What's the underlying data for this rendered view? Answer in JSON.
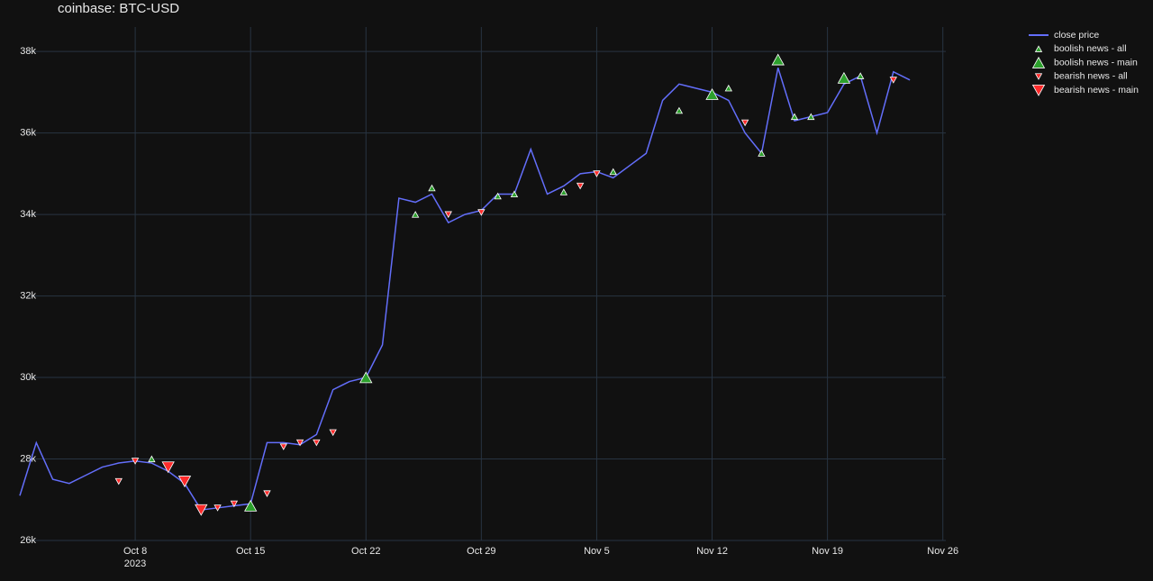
{
  "chart_data": {
    "type": "line",
    "title": "coinbase: BTC-USD",
    "x_year_label": "2023",
    "xlim": [
      "2023-10-01",
      "2023-11-27"
    ],
    "ylim": [
      26000,
      38600
    ],
    "xticks": [
      {
        "value": "2023-10-08",
        "label": "Oct 8"
      },
      {
        "value": "2023-10-15",
        "label": "Oct 15"
      },
      {
        "value": "2023-10-22",
        "label": "Oct 22"
      },
      {
        "value": "2023-10-29",
        "label": "Oct 29"
      },
      {
        "value": "2023-11-05",
        "label": "Nov 5"
      },
      {
        "value": "2023-11-12",
        "label": "Nov 12"
      },
      {
        "value": "2023-11-19",
        "label": "Nov 19"
      },
      {
        "value": "2023-11-26",
        "label": "Nov 26"
      }
    ],
    "yticks": [
      {
        "value": 26000,
        "label": "26k"
      },
      {
        "value": 28000,
        "label": "28k"
      },
      {
        "value": 30000,
        "label": "30k"
      },
      {
        "value": 32000,
        "label": "32k"
      },
      {
        "value": 34000,
        "label": "34k"
      },
      {
        "value": 36000,
        "label": "36k"
      },
      {
        "value": 38000,
        "label": "38k"
      }
    ],
    "grid": true,
    "legend": "top-right",
    "series": [
      {
        "name": "close price",
        "color": "#636efa",
        "marker": "line",
        "x": [
          "2023-10-01",
          "2023-10-02",
          "2023-10-03",
          "2023-10-04",
          "2023-10-05",
          "2023-10-06",
          "2023-10-07",
          "2023-10-08",
          "2023-10-09",
          "2023-10-10",
          "2023-10-11",
          "2023-10-12",
          "2023-10-13",
          "2023-10-14",
          "2023-10-15",
          "2023-10-16",
          "2023-10-17",
          "2023-10-18",
          "2023-10-19",
          "2023-10-20",
          "2023-10-21",
          "2023-10-22",
          "2023-10-23",
          "2023-10-24",
          "2023-10-25",
          "2023-10-26",
          "2023-10-27",
          "2023-10-28",
          "2023-10-29",
          "2023-10-30",
          "2023-10-31",
          "2023-11-01",
          "2023-11-02",
          "2023-11-03",
          "2023-11-04",
          "2023-11-05",
          "2023-11-06",
          "2023-11-07",
          "2023-11-08",
          "2023-11-09",
          "2023-11-10",
          "2023-11-11",
          "2023-11-12",
          "2023-11-13",
          "2023-11-14",
          "2023-11-15",
          "2023-11-16",
          "2023-11-17",
          "2023-11-18",
          "2023-11-19",
          "2023-11-20",
          "2023-11-21",
          "2023-11-22",
          "2023-11-23",
          "2023-11-24"
        ],
        "values": [
          27100,
          28400,
          27500,
          27400,
          27600,
          27800,
          27900,
          27950,
          27900,
          27700,
          27400,
          26750,
          26800,
          26850,
          26900,
          28400,
          28400,
          28350,
          28600,
          29700,
          29900,
          30000,
          30800,
          34400,
          34300,
          34500,
          33800,
          34000,
          34100,
          34500,
          34500,
          35600,
          34500,
          34700,
          35000,
          35050,
          34900,
          35200,
          35500,
          36800,
          37200,
          37100,
          37000,
          36800,
          36000,
          35500,
          37600,
          36300,
          36400,
          36500,
          37200,
          37400,
          36000,
          37500,
          37300
        ]
      },
      {
        "name": "boolish news - all",
        "color": "#2ca02c",
        "marker": "triangle-up",
        "marker_size": 7,
        "x": [
          "2023-10-09",
          "2023-10-25",
          "2023-10-26",
          "2023-10-30",
          "2023-10-31",
          "2023-11-03",
          "2023-11-06",
          "2023-11-10",
          "2023-11-13",
          "2023-11-15",
          "2023-11-17",
          "2023-11-18",
          "2023-11-21"
        ],
        "values": [
          28000,
          34000,
          34650,
          34450,
          34500,
          34550,
          35050,
          36550,
          37100,
          35500,
          36400,
          36400,
          37400
        ]
      },
      {
        "name": "boolish news - main",
        "color": "#2ca02c",
        "marker": "triangle-up",
        "marker_size": 13,
        "x": [
          "2023-10-15",
          "2023-10-22",
          "2023-11-12",
          "2023-11-16",
          "2023-11-20"
        ],
        "values": [
          26850,
          30000,
          36950,
          37800,
          37350
        ]
      },
      {
        "name": "bearish news - all",
        "color": "#ff2b2b",
        "marker": "triangle-down",
        "marker_size": 7,
        "x": [
          "2023-10-07",
          "2023-10-08",
          "2023-10-13",
          "2023-10-14",
          "2023-10-16",
          "2023-10-17",
          "2023-10-18",
          "2023-10-19",
          "2023-10-20",
          "2023-10-27",
          "2023-10-29",
          "2023-11-04",
          "2023-11-05",
          "2023-11-14",
          "2023-11-23"
        ],
        "values": [
          27450,
          27950,
          26800,
          26900,
          27150,
          28300,
          28400,
          28400,
          28650,
          34000,
          34050,
          34700,
          35000,
          36250,
          37300
        ]
      },
      {
        "name": "bearish news - main",
        "color": "#ff2b2b",
        "marker": "triangle-down",
        "marker_size": 13,
        "x": [
          "2023-10-10",
          "2023-10-11",
          "2023-10-12"
        ],
        "values": [
          27800,
          27450,
          26750
        ]
      }
    ]
  }
}
